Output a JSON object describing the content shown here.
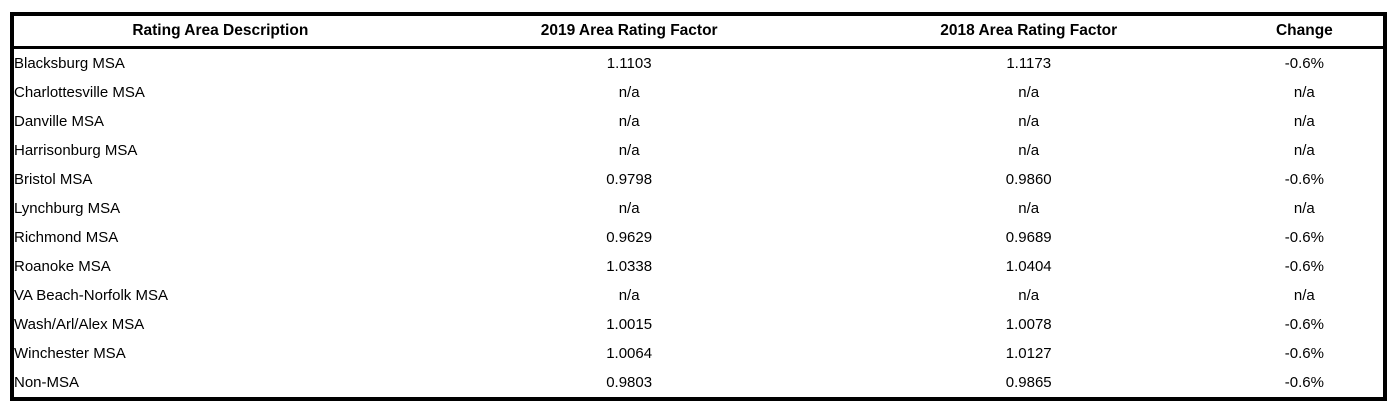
{
  "chart_data": {
    "type": "table",
    "title": "",
    "columns": [
      "Rating Area Description",
      "2019 Area Rating Factor",
      "2018 Area Rating Factor",
      "Change"
    ],
    "rows": [
      {
        "description": "Blacksburg MSA",
        "factor_2019": "1.1103",
        "factor_2018": "1.1173",
        "change": "-0.6%"
      },
      {
        "description": "Charlottesville MSA",
        "factor_2019": "n/a",
        "factor_2018": "n/a",
        "change": "n/a"
      },
      {
        "description": "Danville MSA",
        "factor_2019": "n/a",
        "factor_2018": "n/a",
        "change": "n/a"
      },
      {
        "description": "Harrisonburg MSA",
        "factor_2019": "n/a",
        "factor_2018": "n/a",
        "change": "n/a"
      },
      {
        "description": "Bristol MSA",
        "factor_2019": "0.9798",
        "factor_2018": "0.9860",
        "change": "-0.6%"
      },
      {
        "description": "Lynchburg MSA",
        "factor_2019": "n/a",
        "factor_2018": "n/a",
        "change": "n/a"
      },
      {
        "description": "Richmond MSA",
        "factor_2019": "0.9629",
        "factor_2018": "0.9689",
        "change": "-0.6%"
      },
      {
        "description": "Roanoke MSA",
        "factor_2019": "1.0338",
        "factor_2018": "1.0404",
        "change": "-0.6%"
      },
      {
        "description": "VA Beach-Norfolk MSA",
        "factor_2019": "n/a",
        "factor_2018": "n/a",
        "change": "n/a"
      },
      {
        "description": "Wash/Arl/Alex MSA",
        "factor_2019": "1.0015",
        "factor_2018": "1.0078",
        "change": "-0.6%"
      },
      {
        "description": "Winchester MSA",
        "factor_2019": "1.0064",
        "factor_2018": "1.0127",
        "change": "-0.6%"
      },
      {
        "description": "Non-MSA",
        "factor_2019": "0.9803",
        "factor_2018": "0.9865",
        "change": "-0.6%"
      }
    ],
    "colors": {
      "border": "#000000",
      "text": "#000000",
      "background": "#ffffff"
    },
    "layout": {
      "grid": "outer-border-and-header-separator-only",
      "header_style": "bold-centered",
      "first_column_align": "left",
      "value_columns_align": "center"
    }
  }
}
